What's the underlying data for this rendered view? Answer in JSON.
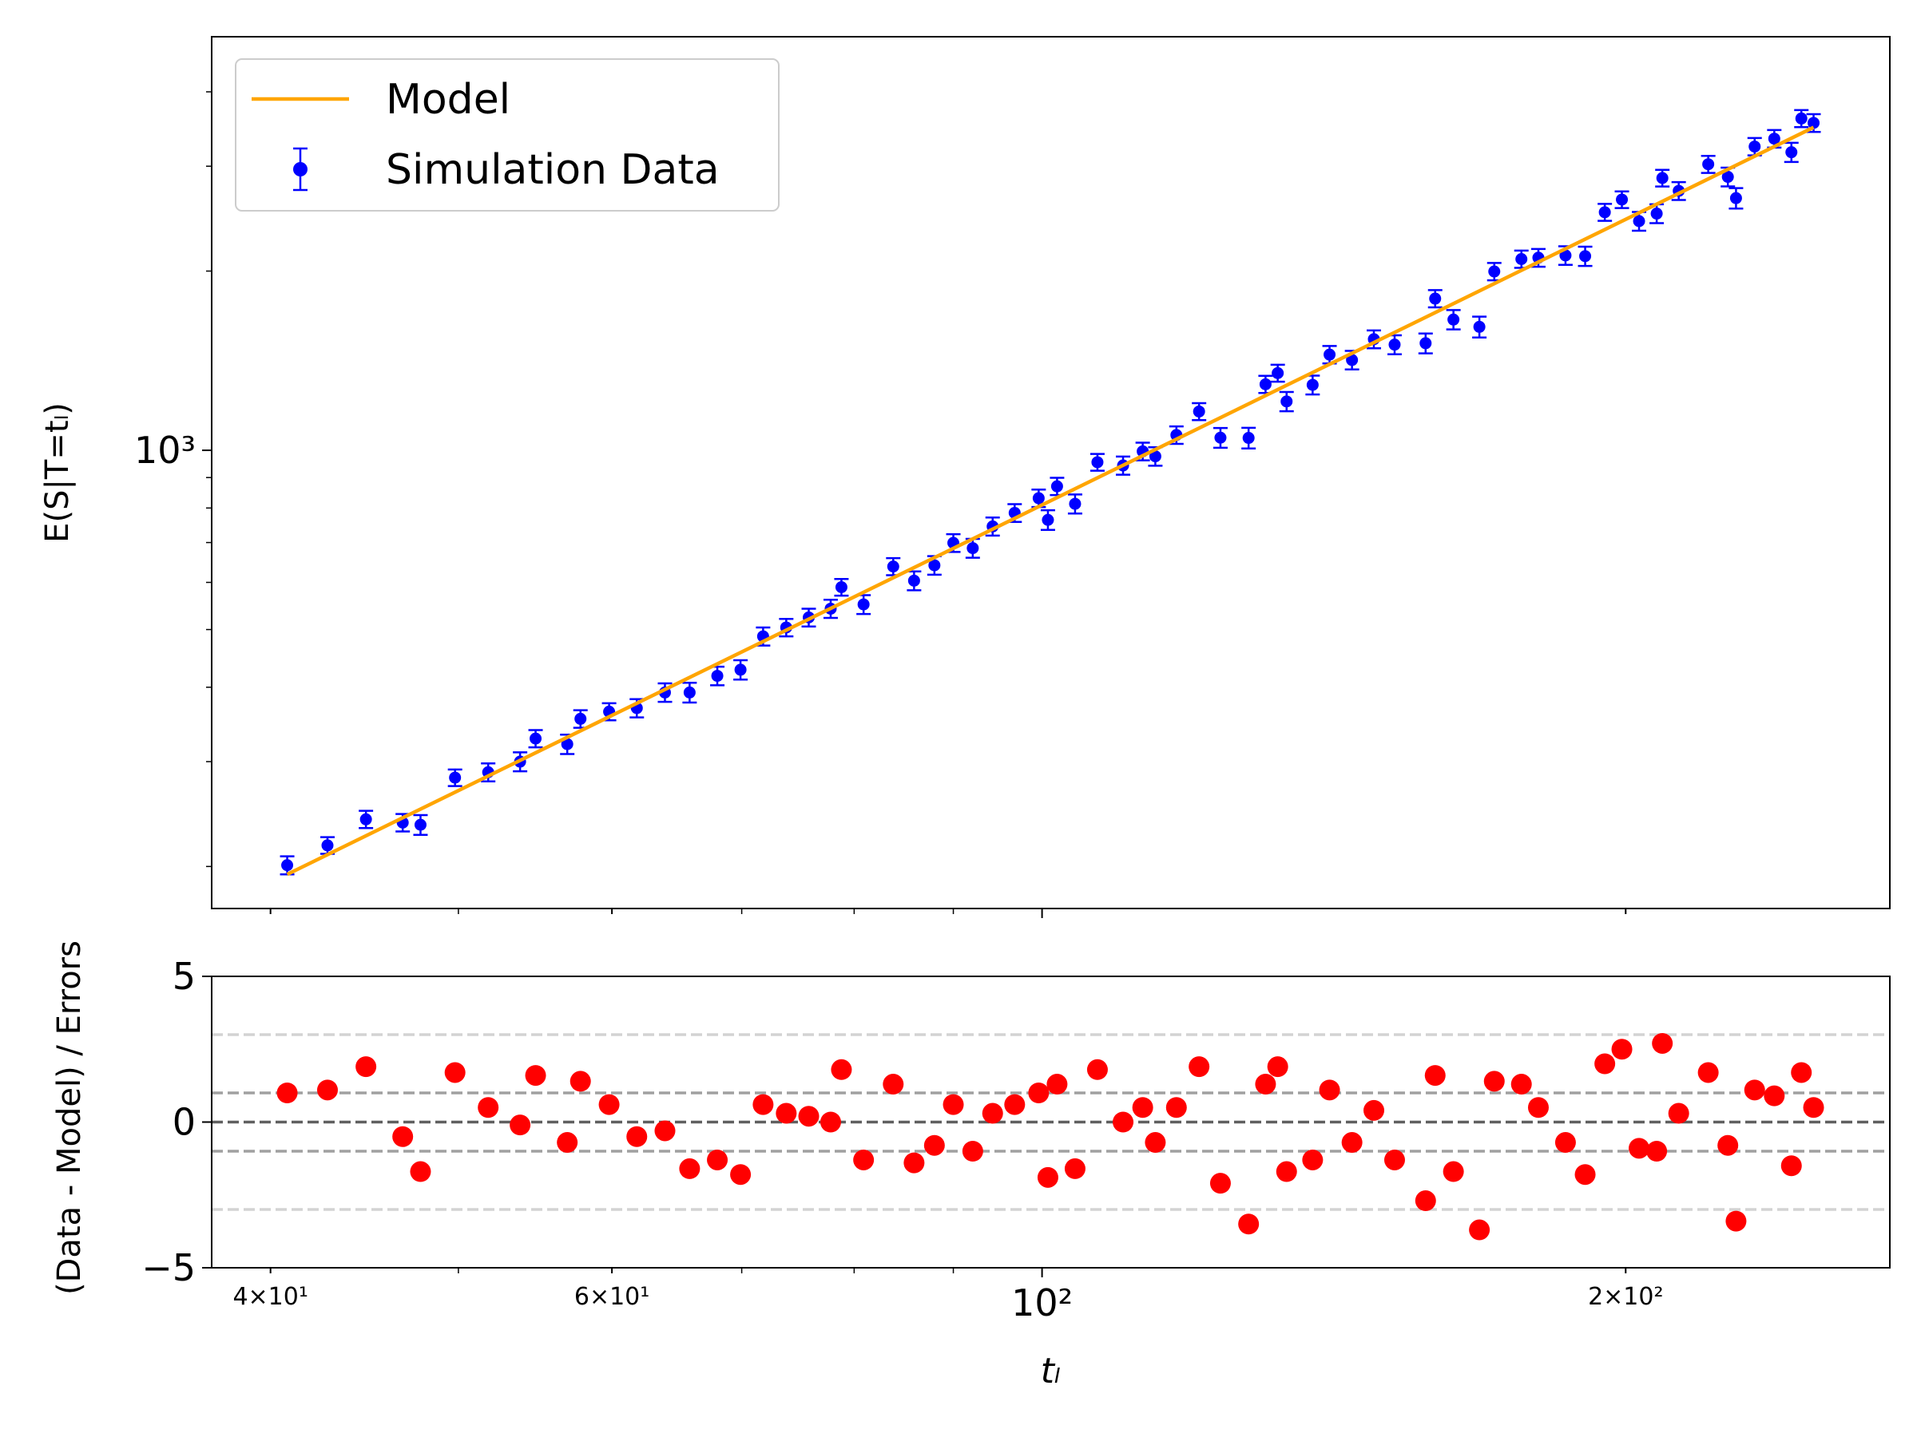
{
  "chart_data": [
    {
      "type": "line",
      "ylabel": "E(S|T=tₗ)",
      "xlim": [
        37.3,
        273.7
      ],
      "ylim": [
        170,
        4950
      ],
      "xscale": "log",
      "yscale": "log",
      "yticks": [
        {
          "value": 1000,
          "label": "10³"
        }
      ],
      "yminorticks": [
        200,
        300,
        400,
        500,
        600,
        700,
        800,
        900,
        2000,
        3000,
        4000
      ],
      "legend": "upper left",
      "series": [
        {
          "name": "Model",
          "color": "#ffa500",
          "kind": "line",
          "x": [
            40.8,
            250.0
          ],
          "values": [
            194,
            3486
          ]
        },
        {
          "name": "Simulation Data",
          "color": "#0000ff",
          "kind": "errorbar",
          "x": [
            40.8,
            42.8,
            44.8,
            46.8,
            47.8,
            49.8,
            51.8,
            53.8,
            54.8,
            56.9,
            57.8,
            59.8,
            61.8,
            63.9,
            65.8,
            68.0,
            69.9,
            71.8,
            73.8,
            75.8,
            77.8,
            78.8,
            80.9,
            83.8,
            85.9,
            88.0,
            90.0,
            92.1,
            94.3,
            96.8,
            99.6,
            100.7,
            101.8,
            104.0,
            106.8,
            110.1,
            112.7,
            114.4,
            117.3,
            120.5,
            123.6,
            127.8,
            130.4,
            132.3,
            133.7,
            137.9,
            140.7,
            144.5,
            148.3,
            152.0,
            157.7,
            159.5,
            163.0,
            168.1,
            171.1,
            176.7,
            180.3,
            186.2,
            190.6,
            195.1,
            199.1,
            203.2,
            207.5,
            208.9,
            213.0,
            220.6,
            225.8,
            228.0,
            233.1,
            238.6,
            243.5,
            246.4,
            250.0
          ],
          "values": [
            201,
            217,
            240,
            237,
            235,
            282,
            288,
            300,
            328,
            321,
            354,
            364,
            369,
            392,
            392,
            418,
            428,
            487,
            504,
            524,
            542,
            589,
            551,
            638,
            604,
            641,
            699,
            685,
            745,
            785,
            831,
            764,
            870,
            813,
            955,
            943,
            996,
            977,
            1061,
            1162,
            1050,
            1049,
            1291,
            1348,
            1208,
            1288,
            1448,
            1418,
            1537,
            1505,
            1513,
            1798,
            1658,
            1612,
            1997,
            2095,
            2106,
            2125,
            2119,
            2511,
            2637,
            2426,
            2498,
            2866,
            2727,
            3023,
            2879,
            2652,
            3237,
            3337,
            3167,
            3608,
            3547
          ],
          "errors": [
            7,
            7,
            8,
            8,
            9,
            9,
            10,
            11,
            11,
            12,
            12,
            12,
            13,
            14,
            15,
            15,
            16,
            17,
            17,
            18,
            19,
            19,
            20,
            21,
            22,
            23,
            24,
            25,
            26,
            27,
            28,
            29,
            29,
            30,
            31,
            33,
            34,
            35,
            36,
            38,
            40,
            42,
            43,
            44,
            45,
            47,
            49,
            51,
            53,
            55,
            58,
            60,
            62,
            65,
            67,
            70,
            72,
            76,
            79,
            82,
            85,
            88,
            91,
            92,
            94,
            100,
            104,
            105,
            109,
            113,
            117,
            119,
            122
          ]
        }
      ]
    },
    {
      "type": "scatter",
      "xlabel": "tₗ",
      "ylabel": "(Data - Model) / Errors",
      "xlim": [
        37.3,
        273.7
      ],
      "ylim": [
        -5,
        5
      ],
      "xscale": "log",
      "xticks": [
        {
          "value": 40,
          "label": "4×10¹"
        },
        {
          "value": 60,
          "label": "6×10¹"
        },
        {
          "value": 100,
          "label": "10²"
        },
        {
          "value": 200,
          "label": "2×10²"
        }
      ],
      "xminorticks": [
        50,
        70,
        80,
        90
      ],
      "yticks": [
        {
          "value": -5,
          "label": "−5"
        },
        0,
        5
      ],
      "hlines": [
        {
          "y": 3,
          "color": "#d3d3d3"
        },
        {
          "y": -3,
          "color": "#d3d3d3"
        },
        {
          "y": 1,
          "color": "#a0a0a0"
        },
        {
          "y": -1,
          "color": "#a0a0a0"
        },
        {
          "y": 0,
          "color": "#606060"
        }
      ],
      "color": "#ff0000",
      "x": [
        40.8,
        42.8,
        44.8,
        46.8,
        47.8,
        49.8,
        51.8,
        53.8,
        54.8,
        56.9,
        57.8,
        59.8,
        61.8,
        63.9,
        65.8,
        68.0,
        69.9,
        71.8,
        73.8,
        75.8,
        77.8,
        78.8,
        80.9,
        83.8,
        85.9,
        88.0,
        90.0,
        92.1,
        94.3,
        96.8,
        99.6,
        100.7,
        101.8,
        104.0,
        106.8,
        110.1,
        112.7,
        114.4,
        117.3,
        120.5,
        123.6,
        127.8,
        130.4,
        132.3,
        133.7,
        137.9,
        140.7,
        144.5,
        148.3,
        152.0,
        157.7,
        159.5,
        163.0,
        168.1,
        171.1,
        176.7,
        180.3,
        186.2,
        190.6,
        195.1,
        199.1,
        203.2,
        207.5,
        208.9,
        213.0,
        220.6,
        225.8,
        228.0,
        233.1,
        238.6,
        243.5,
        246.4,
        250.0
      ],
      "values": [
        1.0,
        1.1,
        1.9,
        -0.5,
        -1.7,
        1.7,
        0.5,
        -0.1,
        1.6,
        -0.7,
        1.4,
        0.6,
        -0.5,
        -0.3,
        -1.6,
        -1.3,
        -1.8,
        0.6,
        0.3,
        0.2,
        0.0,
        1.8,
        -1.3,
        1.3,
        -1.4,
        -0.8,
        0.6,
        -1.0,
        0.3,
        0.6,
        1.0,
        -1.9,
        1.3,
        -1.6,
        1.8,
        0.0,
        0.5,
        -0.7,
        0.5,
        1.9,
        -2.1,
        -3.5,
        1.3,
        1.9,
        -1.7,
        -1.3,
        1.1,
        -0.7,
        0.4,
        -1.3,
        -2.7,
        1.6,
        -1.7,
        -3.7,
        1.4,
        1.3,
        0.5,
        -0.7,
        -1.8,
        2.0,
        2.5,
        -0.9,
        -1.0,
        2.7,
        0.3,
        1.7,
        -0.8,
        -3.4,
        1.1,
        0.9,
        -1.5,
        1.7,
        0.5
      ]
    }
  ]
}
